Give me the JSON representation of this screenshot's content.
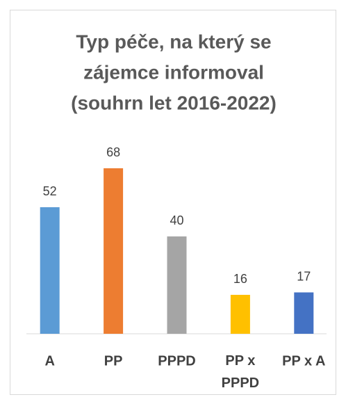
{
  "chart_data": {
    "type": "bar",
    "title": [
      "Typ péče, na který se",
      "zájemce informoval",
      "(souhrn let 2016-2022)"
    ],
    "categories": [
      "A",
      "PP",
      "PPPD",
      "PP x PPPD",
      "PP x A"
    ],
    "values": [
      52,
      68,
      40,
      16,
      17
    ],
    "colors": [
      "#5b9bd5",
      "#ed7d31",
      "#a5a5a5",
      "#ffc000",
      "#4472c4"
    ]
  }
}
